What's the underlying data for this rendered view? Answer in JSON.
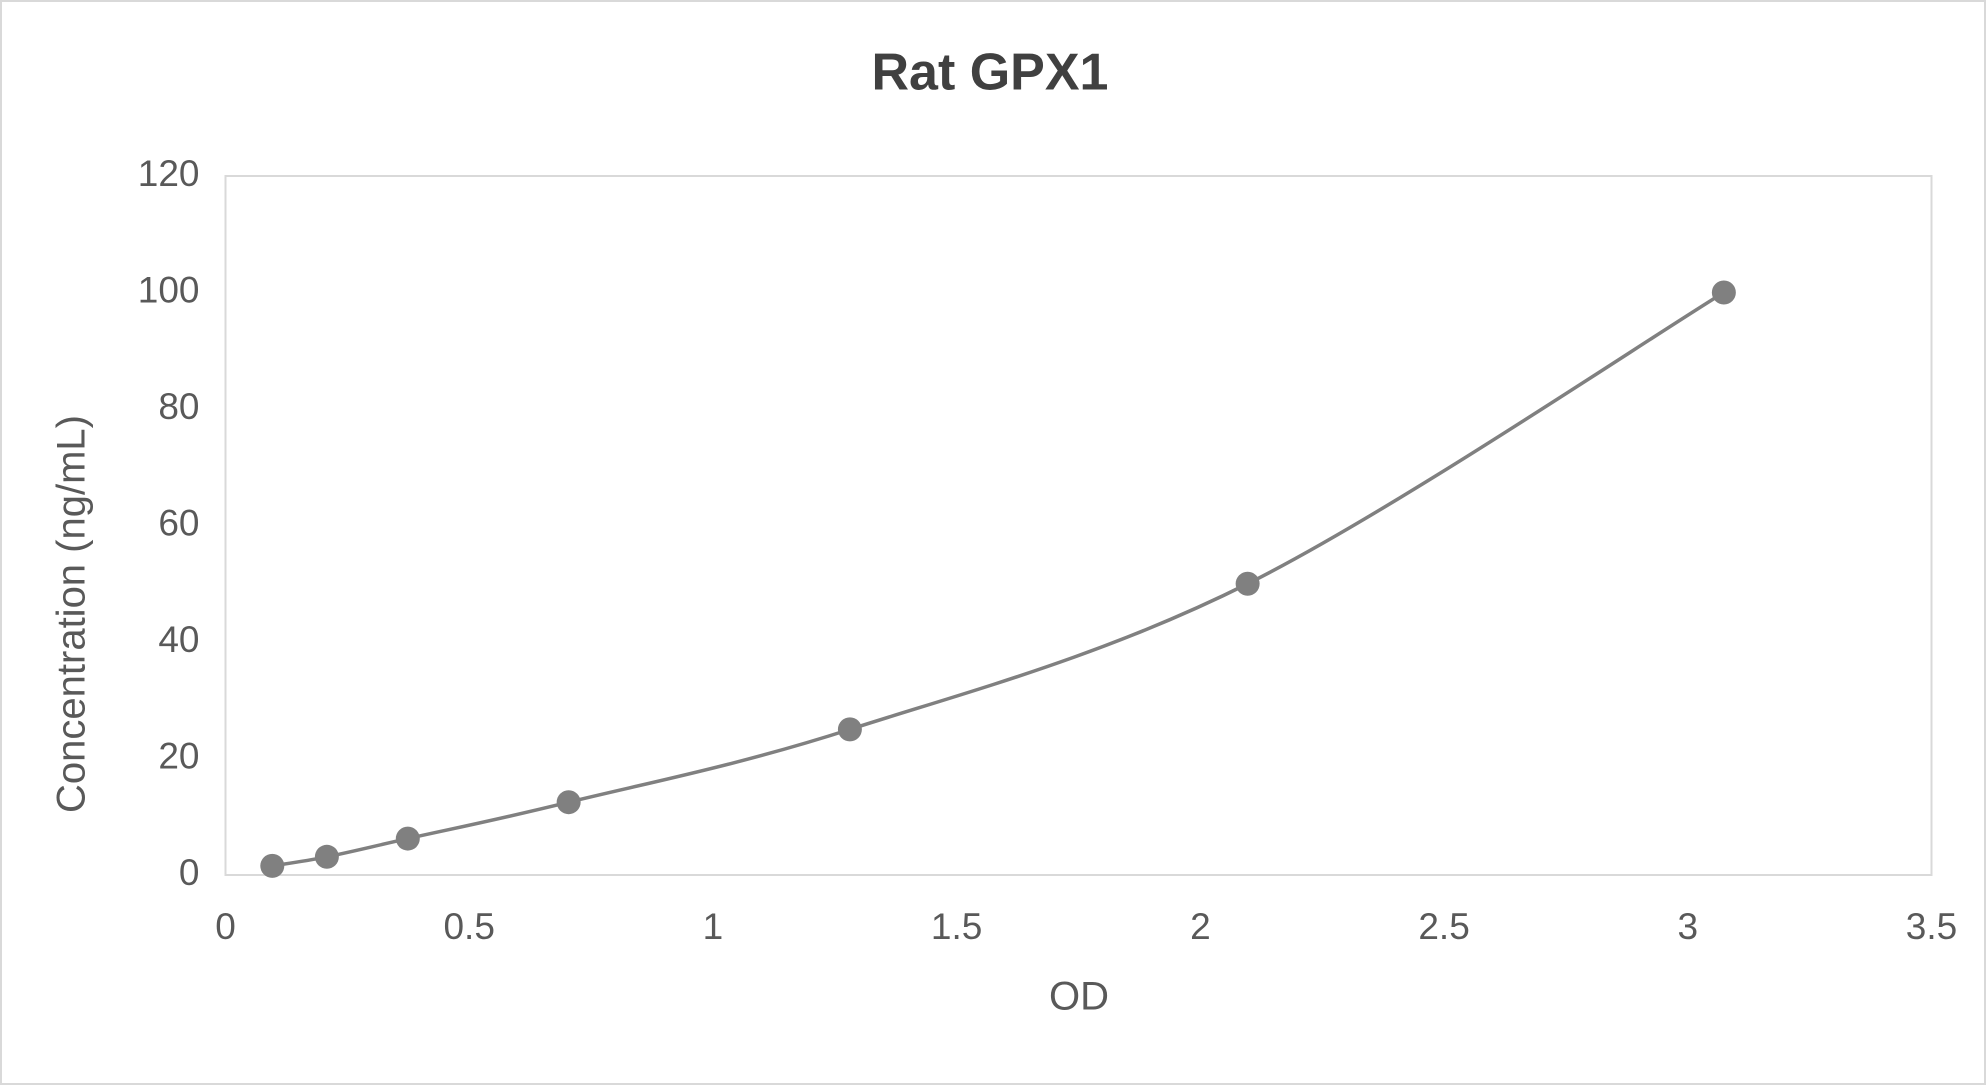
{
  "chart_data": {
    "type": "line",
    "title": "Rat GPX1",
    "x_label": "OD",
    "y_label": "Concentration (ng/mL)",
    "x": [
      0.096,
      0.208,
      0.374,
      0.704,
      1.281,
      2.097,
      3.074
    ],
    "series": [
      {
        "name": "Concentration",
        "color": "#808080",
        "values": [
          1.5625,
          3.125,
          6.25,
          12.5,
          25,
          50,
          100
        ]
      }
    ],
    "xlim": [
      0,
      3.5
    ],
    "xticks": [
      0,
      0.5,
      1,
      1.5,
      2,
      2.5,
      3,
      3.5
    ],
    "ylim": [
      0,
      120
    ],
    "yticks": [
      0,
      20,
      40,
      60,
      80,
      100,
      120
    ],
    "grid": false,
    "smooth": true,
    "markers": true
  }
}
